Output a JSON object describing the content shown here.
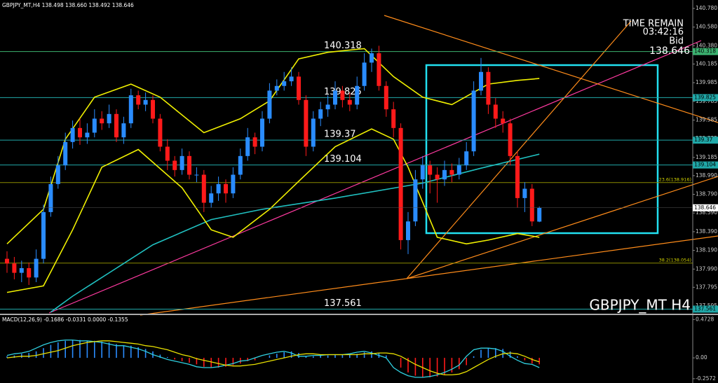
{
  "chart_data": [
    {
      "type": "candlestick",
      "title": "GBPJPY_MT,H4  138.498 138.660 138.492 138.646",
      "watermark": "GBPJPY_MT H4",
      "timer": {
        "title": "TIME REMAIN",
        "time": "03:42:16",
        "label": "Bid",
        "bid": 138.646
      },
      "up_color": "#2a8cff",
      "down_color": "#ff1a1a",
      "open": [
        138.1,
        138.05,
        137.95,
        138.0,
        137.9,
        138.1,
        138.6,
        138.9,
        139.1,
        139.35,
        139.5,
        139.4,
        139.45,
        139.6,
        139.55,
        139.65,
        139.4,
        139.55,
        139.85,
        139.75,
        139.8,
        139.6,
        139.3,
        139.15,
        139.05,
        139.2,
        139.0,
        139.0,
        138.7,
        138.8,
        138.9,
        138.8,
        139.0,
        139.2,
        139.4,
        139.3,
        139.6,
        139.9,
        139.95,
        140.0,
        140.05,
        139.8,
        139.3,
        139.6,
        139.7,
        139.75,
        139.9,
        139.8,
        139.75,
        139.95,
        140.2,
        140.3,
        139.95,
        139.7,
        139.5,
        138.3,
        138.5,
        138.95,
        139.1,
        139.0,
        138.95,
        139.05,
        139.0,
        139.1,
        139.25,
        139.9,
        140.1,
        139.75,
        139.6,
        139.55,
        139.2,
        138.75,
        138.85,
        138.498
      ],
      "high": [
        138.18,
        138.12,
        138.08,
        138.06,
        138.2,
        138.68,
        138.98,
        139.2,
        139.45,
        139.58,
        139.6,
        139.55,
        139.7,
        139.68,
        139.75,
        139.7,
        139.62,
        139.92,
        139.9,
        139.88,
        139.85,
        139.65,
        139.38,
        139.2,
        139.28,
        139.25,
        139.08,
        139.05,
        138.88,
        138.98,
        138.95,
        139.08,
        139.28,
        139.5,
        139.45,
        139.68,
        139.98,
        140.02,
        140.1,
        140.15,
        140.1,
        139.85,
        139.68,
        139.78,
        139.85,
        140.0,
        139.95,
        139.88,
        140.05,
        140.3,
        140.35,
        140.38,
        140.0,
        139.78,
        139.55,
        138.6,
        139.05,
        139.2,
        139.15,
        139.08,
        139.15,
        139.12,
        139.18,
        139.35,
        140.0,
        140.25,
        140.15,
        139.82,
        139.68,
        139.6,
        139.25,
        138.92,
        138.9,
        138.66
      ],
      "low": [
        137.95,
        137.88,
        137.85,
        137.82,
        137.85,
        138.05,
        138.55,
        138.85,
        139.05,
        139.28,
        139.32,
        139.33,
        139.4,
        139.48,
        139.5,
        139.35,
        139.33,
        139.5,
        139.7,
        139.68,
        139.55,
        139.25,
        139.05,
        138.98,
        139.0,
        138.95,
        138.92,
        138.6,
        138.65,
        138.72,
        138.7,
        138.75,
        138.95,
        139.15,
        139.22,
        139.25,
        139.55,
        139.85,
        139.9,
        139.95,
        139.75,
        139.2,
        139.25,
        139.52,
        139.62,
        139.7,
        139.72,
        139.68,
        139.7,
        139.9,
        140.1,
        139.9,
        139.62,
        139.4,
        138.2,
        138.15,
        138.45,
        138.85,
        138.8,
        138.7,
        138.88,
        138.92,
        138.95,
        139.05,
        139.2,
        139.85,
        139.65,
        139.5,
        139.45,
        139.1,
        138.65,
        138.6,
        138.45,
        138.492
      ],
      "close": [
        138.05,
        137.95,
        138.0,
        137.9,
        138.1,
        138.6,
        138.9,
        139.1,
        139.35,
        139.5,
        139.4,
        139.45,
        139.6,
        139.55,
        139.65,
        139.4,
        139.55,
        139.85,
        139.75,
        139.8,
        139.6,
        139.3,
        139.15,
        139.05,
        139.2,
        139.0,
        139.0,
        138.7,
        138.8,
        138.9,
        138.8,
        139.0,
        139.2,
        139.4,
        139.3,
        139.6,
        139.9,
        139.95,
        140.0,
        140.05,
        139.8,
        139.3,
        139.6,
        139.7,
        139.75,
        139.9,
        139.8,
        139.75,
        139.95,
        140.2,
        140.3,
        139.95,
        139.7,
        139.5,
        138.3,
        138.5,
        138.95,
        139.1,
        139.0,
        138.95,
        139.05,
        139.0,
        139.1,
        139.25,
        139.9,
        140.1,
        139.75,
        139.6,
        139.55,
        139.2,
        138.75,
        138.85,
        138.5,
        138.646
      ],
      "series": [
        {
          "color": "#20c0c0",
          "x": [
            6,
            9,
            15,
            20,
            28,
            35,
            45,
            57,
            65,
            73
          ],
          "values": [
            137.53,
            137.7,
            138.0,
            138.25,
            138.52,
            138.63,
            138.75,
            138.91,
            139.07,
            139.22
          ]
        },
        {
          "color": "#f0f000",
          "x": [
            0,
            5,
            8,
            12,
            17,
            21,
            27,
            32,
            36,
            40,
            44,
            49,
            53,
            57,
            61,
            66,
            70,
            73
          ],
          "values": [
            138.26,
            138.63,
            139.38,
            139.83,
            139.97,
            139.83,
            139.45,
            139.6,
            139.79,
            140.24,
            140.31,
            140.35,
            140.05,
            139.83,
            139.75,
            139.97,
            140.01,
            140.03
          ]
        },
        {
          "color": "#f0f000",
          "x": [
            0,
            5,
            9,
            13,
            18,
            24,
            28,
            31,
            36,
            40,
            45,
            50,
            53,
            55,
            59,
            63,
            66,
            70,
            73
          ],
          "values": [
            137.74,
            137.81,
            138.41,
            139.08,
            139.27,
            138.86,
            138.41,
            138.33,
            138.63,
            138.93,
            139.3,
            139.49,
            139.38,
            139.08,
            138.33,
            138.26,
            138.3,
            138.37,
            138.33
          ]
        }
      ],
      "levels": [
        {
          "value": 140.318,
          "color": "#3cb371"
        },
        {
          "value": 139.825,
          "color": "#20a8a8"
        },
        {
          "value": 139.37,
          "color": "#20a8a8"
        },
        {
          "value": 139.104,
          "color": "#20a8a8"
        },
        {
          "value": 137.561,
          "color": "#20a8a8"
        }
      ],
      "fib": [
        {
          "label": "23.6(138.916)",
          "value": 138.916,
          "color": "#8a8a00"
        },
        {
          "label": "38.2(138.054)",
          "value": 138.054,
          "color": "#8a8a00"
        }
      ],
      "ylim": [
        137.52,
        140.87
      ],
      "yticks": [
        {
          "value": 140.78,
          "label": "140.780"
        },
        {
          "value": 140.58,
          "label": "140.580"
        },
        {
          "value": 140.38,
          "label": "140.380"
        },
        140.185,
        139.985,
        139.785,
        139.585,
        {
          "value": 139.385,
          "label": "139.385"
        },
        139.185,
        {
          "value": 138.99,
          "label": "138.990"
        },
        {
          "value": 138.79,
          "label": "138.790"
        },
        {
          "value": 138.59,
          "label": "138.590"
        },
        {
          "value": 138.39,
          "label": "138.390"
        },
        {
          "value": 138.19,
          "label": "138.190"
        },
        {
          "value": 137.99,
          "label": "137.990"
        },
        137.795,
        137.595
      ]
    },
    {
      "type": "macd",
      "title": "MACD(12,26,9) -0.1686 -0.0331 0.0000 -0.1355",
      "pos_color": "#2a8cff",
      "neg_color": "#ff1a1a",
      "histogram": [
        0.02,
        0.03,
        0.05,
        0.06,
        0.08,
        0.12,
        0.16,
        0.19,
        0.21,
        0.22,
        0.22,
        0.21,
        0.21,
        0.2,
        0.19,
        0.17,
        0.15,
        0.15,
        0.13,
        0.11,
        0.08,
        0.04,
        0.01,
        -0.02,
        -0.04,
        -0.06,
        -0.08,
        -0.11,
        -0.12,
        -0.12,
        -0.11,
        -0.09,
        -0.07,
        -0.04,
        -0.03,
        0.0,
        0.03,
        0.05,
        0.07,
        0.08,
        0.06,
        0.02,
        0.02,
        0.03,
        0.03,
        0.04,
        0.04,
        0.04,
        0.05,
        0.07,
        0.08,
        0.06,
        0.03,
        0.0,
        -0.12,
        -0.18,
        -0.22,
        -0.24,
        -0.24,
        -0.23,
        -0.21,
        -0.18,
        -0.14,
        -0.09,
        0.02,
        0.1,
        0.12,
        0.12,
        0.11,
        0.08,
        0.02,
        -0.03,
        -0.07,
        -0.08
      ],
      "series": [
        {
          "color": "#30d0e0",
          "values": [
            0.03,
            0.05,
            0.06,
            0.08,
            0.12,
            0.16,
            0.19,
            0.21,
            0.22,
            0.22,
            0.21,
            0.21,
            0.2,
            0.19,
            0.17,
            0.15,
            0.15,
            0.13,
            0.11,
            0.08,
            0.04,
            0.01,
            -0.02,
            -0.04,
            -0.06,
            -0.08,
            -0.11,
            -0.12,
            -0.12,
            -0.11,
            -0.09,
            -0.07,
            -0.04,
            -0.03,
            0.0,
            0.03,
            0.05,
            0.07,
            0.08,
            0.06,
            0.02,
            0.02,
            0.03,
            0.03,
            0.04,
            0.04,
            0.04,
            0.05,
            0.07,
            0.08,
            0.06,
            0.03,
            0.0,
            -0.12,
            -0.18,
            -0.22,
            -0.24,
            -0.24,
            -0.23,
            -0.21,
            -0.18,
            -0.14,
            -0.09,
            0.02,
            0.1,
            0.12,
            0.12,
            0.11,
            0.08,
            0.02,
            -0.03,
            -0.07,
            -0.08,
            -0.12
          ]
        },
        {
          "color": "#e8e000",
          "values": [
            0.0,
            0.01,
            0.02,
            0.02,
            0.03,
            0.05,
            0.07,
            0.09,
            0.12,
            0.15,
            0.17,
            0.19,
            0.2,
            0.21,
            0.21,
            0.2,
            0.19,
            0.18,
            0.17,
            0.15,
            0.14,
            0.12,
            0.1,
            0.07,
            0.04,
            0.02,
            -0.01,
            -0.03,
            -0.05,
            -0.07,
            -0.09,
            -0.1,
            -0.1,
            -0.09,
            -0.08,
            -0.06,
            -0.04,
            -0.02,
            0.0,
            0.02,
            0.04,
            0.05,
            0.05,
            0.04,
            0.04,
            0.04,
            0.04,
            0.04,
            0.04,
            0.05,
            0.05,
            0.06,
            0.06,
            0.05,
            0.02,
            -0.03,
            -0.08,
            -0.12,
            -0.16,
            -0.19,
            -0.21,
            -0.21,
            -0.2,
            -0.17,
            -0.12,
            -0.07,
            -0.02,
            0.02,
            0.05,
            0.06,
            0.05,
            0.02,
            -0.02,
            -0.05
          ]
        }
      ],
      "ylim": [
        -0.31,
        0.51
      ],
      "yticks": [
        0.4728,
        {
          "value": 0,
          "label": "0.00"
        },
        -0.2572
      ]
    }
  ]
}
